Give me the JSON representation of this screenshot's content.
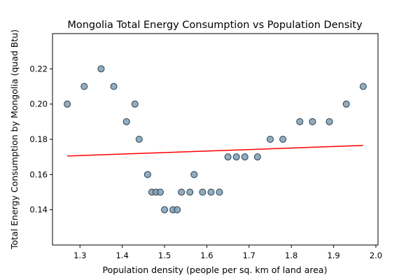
{
  "chart_data": {
    "type": "scatter",
    "title": "Mongolia Total Energy Consumption vs Population Density",
    "xlabel": "Population density (people per sq. km of land area)",
    "ylabel": "Total Energy Consumption by Mongolia (quad Btu)",
    "xlim": [
      1.235,
      2.005
    ],
    "ylim": [
      0.12,
      0.24
    ],
    "xticks": [
      1.3,
      1.4,
      1.5,
      1.6,
      1.7,
      1.8,
      1.9,
      2.0
    ],
    "xtick_labels": [
      "1.3",
      "1.4",
      "1.5",
      "1.6",
      "1.7",
      "1.8",
      "1.9",
      "2.0"
    ],
    "yticks": [
      0.14,
      0.16,
      0.18,
      0.2,
      0.22
    ],
    "ytick_labels": [
      "0.14",
      "0.16",
      "0.18",
      "0.20",
      "0.22"
    ],
    "grid": false,
    "points": [
      {
        "x": 1.27,
        "y": 0.2
      },
      {
        "x": 1.31,
        "y": 0.21
      },
      {
        "x": 1.35,
        "y": 0.22
      },
      {
        "x": 1.38,
        "y": 0.21
      },
      {
        "x": 1.41,
        "y": 0.19
      },
      {
        "x": 1.43,
        "y": 0.2
      },
      {
        "x": 1.44,
        "y": 0.18
      },
      {
        "x": 1.46,
        "y": 0.16
      },
      {
        "x": 1.47,
        "y": 0.15
      },
      {
        "x": 1.48,
        "y": 0.15
      },
      {
        "x": 1.49,
        "y": 0.15
      },
      {
        "x": 1.5,
        "y": 0.14
      },
      {
        "x": 1.52,
        "y": 0.14
      },
      {
        "x": 1.53,
        "y": 0.14
      },
      {
        "x": 1.54,
        "y": 0.15
      },
      {
        "x": 1.56,
        "y": 0.15
      },
      {
        "x": 1.57,
        "y": 0.16
      },
      {
        "x": 1.59,
        "y": 0.15
      },
      {
        "x": 1.61,
        "y": 0.15
      },
      {
        "x": 1.63,
        "y": 0.15
      },
      {
        "x": 1.65,
        "y": 0.17
      },
      {
        "x": 1.67,
        "y": 0.17
      },
      {
        "x": 1.69,
        "y": 0.17
      },
      {
        "x": 1.72,
        "y": 0.17
      },
      {
        "x": 1.75,
        "y": 0.18
      },
      {
        "x": 1.78,
        "y": 0.18
      },
      {
        "x": 1.82,
        "y": 0.19
      },
      {
        "x": 1.85,
        "y": 0.19
      },
      {
        "x": 1.89,
        "y": 0.19
      },
      {
        "x": 1.93,
        "y": 0.2
      },
      {
        "x": 1.97,
        "y": 0.21
      }
    ],
    "trendline": {
      "x": [
        1.27,
        1.97
      ],
      "y": [
        0.1705,
        0.1765
      ]
    },
    "colors": {
      "point_fill": "#7f9fb4",
      "point_edge": "#2a3f52",
      "trendline": "#ff0000",
      "axes": "#000000"
    }
  }
}
